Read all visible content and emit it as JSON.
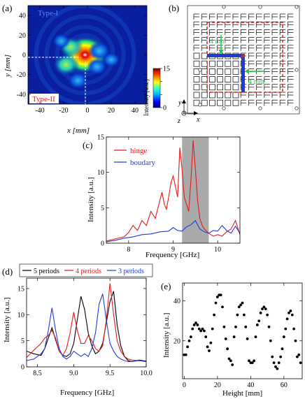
{
  "panel_labels": {
    "a": "(a)",
    "b": "(b)",
    "c": "(c)",
    "d": "(d)",
    "e": "(e)"
  },
  "chart_data": [
    {
      "id": "a",
      "type": "heatmap",
      "xlabel": "x [mm]",
      "ylabel": "y [mm]",
      "xlim": [
        -50,
        50
      ],
      "ylim": [
        -50,
        50
      ],
      "xticks": [
        -40,
        -20,
        0,
        20,
        40
      ],
      "yticks": [
        40,
        20,
        0,
        -20,
        -40
      ],
      "colorbar": {
        "label": "Intensity [a.u.]",
        "min": 0,
        "max": 15,
        "ticks": [
          0,
          5,
          10,
          15
        ]
      },
      "annotations": [
        "Type-I",
        "Type-II"
      ],
      "hotspots": [
        {
          "x": -2,
          "y": 0,
          "intensity": 15
        },
        {
          "x": -18,
          "y": -10,
          "intensity": 7
        },
        {
          "x": -14,
          "y": 8,
          "intensity": 6
        },
        {
          "x": 10,
          "y": 4,
          "intensity": 5
        },
        {
          "x": 8,
          "y": -12,
          "intensity": 4
        },
        {
          "x": -8,
          "y": -26,
          "intensity": 4
        },
        {
          "x": -22,
          "y": 14,
          "intensity": 3
        },
        {
          "x": 20,
          "y": -5,
          "intensity": 3
        }
      ]
    },
    {
      "id": "b",
      "type": "diagram",
      "labels": [
        "4 mm",
        "4 mm"
      ],
      "axes": [
        "x",
        "y",
        "z"
      ]
    },
    {
      "id": "c",
      "type": "line",
      "xlabel": "Frequency [GHz]",
      "ylabel": "Intensity [a.u.]",
      "xlim": [
        7.5,
        10.5
      ],
      "ylim": [
        0,
        15
      ],
      "xticks": [
        8,
        9,
        10
      ],
      "yticks": [
        0,
        5,
        10,
        15
      ],
      "shaded_band": [
        9.2,
        9.8
      ],
      "legend": "top-left",
      "series": [
        {
          "name": "hinge",
          "color": "#e41a1c",
          "x": [
            7.5,
            7.7,
            7.9,
            8.0,
            8.1,
            8.2,
            8.3,
            8.4,
            8.5,
            8.6,
            8.7,
            8.75,
            8.8,
            8.85,
            8.9,
            8.95,
            9.0,
            9.05,
            9.1,
            9.15,
            9.2,
            9.25,
            9.3,
            9.35,
            9.4,
            9.45,
            9.5,
            9.55,
            9.6,
            9.65,
            9.7,
            9.8,
            9.9,
            10.0,
            10.1,
            10.2,
            10.3,
            10.4,
            10.5
          ],
          "y": [
            0.3,
            0.6,
            0.9,
            1.5,
            2.5,
            1.8,
            3.2,
            2.5,
            4.5,
            3.5,
            6.0,
            7.2,
            5.5,
            4.8,
            6.5,
            8.5,
            9.5,
            8.0,
            6.5,
            13.5,
            10.5,
            6.5,
            5.5,
            4.5,
            9.0,
            14.5,
            10.5,
            6.0,
            3.5,
            2.5,
            2.0,
            1.4,
            1.0,
            1.2,
            1.0,
            1.6,
            2.0,
            3.2,
            1.2
          ]
        },
        {
          "name": "boudary",
          "color": "#1f3bd6",
          "x": [
            7.5,
            7.7,
            7.9,
            8.1,
            8.3,
            8.5,
            8.7,
            8.9,
            9.0,
            9.1,
            9.2,
            9.3,
            9.4,
            9.5,
            9.6,
            9.7,
            9.8,
            9.9,
            10.0,
            10.1,
            10.2,
            10.3,
            10.4,
            10.5
          ],
          "y": [
            0.2,
            0.4,
            0.7,
            0.9,
            1.2,
            1.3,
            1.6,
            1.7,
            2.2,
            1.8,
            1.7,
            2.3,
            2.6,
            3.2,
            2.0,
            1.6,
            1.4,
            1.8,
            1.7,
            2.5,
            1.8,
            1.4,
            2.4,
            1.4
          ]
        }
      ]
    },
    {
      "id": "d",
      "type": "line",
      "xlabel": "Frequency [GHz]",
      "ylabel": "Intensity [a.u.]",
      "xlim": [
        8.35,
        10.0
      ],
      "ylim": [
        0,
        17
      ],
      "xticks": [
        8.5,
        9.0,
        9.5,
        10.0
      ],
      "yticks": [
        0,
        5,
        10,
        15
      ],
      "legend": "top",
      "series": [
        {
          "name": "5 periods",
          "color": "#000000",
          "x": [
            8.35,
            8.45,
            8.55,
            8.6,
            8.65,
            8.7,
            8.75,
            8.8,
            8.85,
            8.9,
            8.95,
            9.0,
            9.05,
            9.1,
            9.15,
            9.2,
            9.25,
            9.3,
            9.35,
            9.4,
            9.45,
            9.5,
            9.55,
            9.6,
            9.65,
            9.7,
            9.75,
            9.8,
            9.9,
            10.0
          ],
          "y": [
            3,
            2.5,
            2.2,
            3.5,
            5.5,
            7.5,
            5.2,
            3.0,
            2.2,
            2.0,
            2.5,
            4.5,
            9.0,
            13.5,
            11.0,
            6.5,
            4.0,
            2.5,
            3.0,
            4.5,
            8.5,
            12.5,
            14.5,
            8.0,
            4.0,
            2.0,
            1.2,
            1.0,
            1.3,
            1.1
          ]
        },
        {
          "name": "4 periods",
          "color": "#e41a1c",
          "x": [
            8.35,
            8.45,
            8.55,
            8.6,
            8.65,
            8.7,
            8.75,
            8.8,
            8.85,
            8.9,
            8.95,
            9.0,
            9.05,
            9.1,
            9.15,
            9.2,
            9.25,
            9.3,
            9.35,
            9.4,
            9.45,
            9.5,
            9.55,
            9.6,
            9.65,
            9.7,
            9.75,
            9.8,
            9.9,
            10.0
          ],
          "y": [
            1.8,
            3.2,
            4.5,
            5.5,
            6.0,
            7.0,
            5.5,
            3.0,
            2.2,
            3.5,
            6.5,
            10.5,
            7.0,
            4.5,
            4.5,
            6.0,
            5.0,
            3.5,
            3.0,
            4.0,
            9.0,
            16.0,
            10.0,
            5.0,
            3.0,
            2.0,
            1.5,
            1.3,
            1.2,
            1.0
          ]
        },
        {
          "name": "3 periods",
          "color": "#1f3bd6",
          "x": [
            8.35,
            8.45,
            8.55,
            8.6,
            8.65,
            8.7,
            8.75,
            8.8,
            8.85,
            8.9,
            8.95,
            9.0,
            9.05,
            9.1,
            9.15,
            9.2,
            9.25,
            9.3,
            9.35,
            9.4,
            9.45,
            9.5,
            9.55,
            9.6,
            9.65,
            9.7,
            9.75,
            9.8,
            9.9,
            10.0
          ],
          "y": [
            1.2,
            1.5,
            2.5,
            3.5,
            7.0,
            11.3,
            7.0,
            3.5,
            2.0,
            1.5,
            2.0,
            3.0,
            2.5,
            2.0,
            2.5,
            2.0,
            3.5,
            6.5,
            12.0,
            14.0,
            9.0,
            4.5,
            3.0,
            2.0,
            1.5,
            1.2,
            1.0,
            1.0,
            1.2,
            1.0
          ]
        }
      ]
    },
    {
      "id": "e",
      "type": "scatter",
      "xlabel": "Height [mm]",
      "ylabel": "Intensity [a.u.]",
      "xlim": [
        -1,
        71
      ],
      "ylim": [
        1,
        49
      ],
      "xticks": [
        0,
        20,
        40,
        60
      ],
      "yticks": [
        20,
        40
      ],
      "x": [
        0,
        1,
        2,
        3,
        4,
        5,
        6,
        7,
        8,
        9,
        10,
        11,
        12,
        13,
        14,
        15,
        16,
        17,
        18,
        19,
        20,
        21,
        22,
        23,
        24,
        25,
        26,
        27,
        28,
        29,
        30,
        31,
        32,
        33,
        34,
        35,
        36,
        37,
        38,
        39,
        40,
        41,
        42,
        43,
        44,
        45,
        46,
        47,
        48,
        49,
        50,
        51,
        52,
        53,
        54,
        55,
        56,
        57,
        58,
        59,
        60,
        61,
        62,
        63,
        64,
        65,
        66,
        67,
        68,
        69,
        70
      ],
      "y": [
        13,
        13,
        17,
        20,
        22,
        26,
        28,
        29,
        28,
        26,
        25,
        26,
        25,
        22,
        17,
        15,
        19,
        26,
        33,
        39,
        42,
        43,
        43,
        37,
        27,
        21,
        16,
        11,
        10,
        8,
        22,
        27,
        33,
        37,
        38,
        39,
        33,
        27,
        21,
        10,
        9,
        9,
        10,
        22,
        28,
        30,
        34,
        36,
        37,
        36,
        33,
        27,
        20,
        12,
        9,
        7,
        6,
        9,
        12,
        16,
        22,
        26,
        31,
        34,
        35,
        33,
        26,
        20,
        12,
        13,
        9
      ]
    }
  ]
}
